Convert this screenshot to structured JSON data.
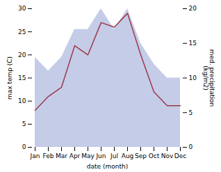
{
  "chart_data": {
    "type": "line",
    "categories": [
      "Jan",
      "Feb",
      "Mar",
      "Apr",
      "May",
      "Jun",
      "Jul",
      "Aug",
      "Sep",
      "Oct",
      "Nov",
      "Dec"
    ],
    "series": [
      {
        "type": "area",
        "color": "#c5cce8",
        "axis": "y2",
        "values": [
          13,
          11,
          13,
          17,
          17,
          20,
          17,
          20,
          15,
          12,
          10,
          10
        ]
      },
      {
        "type": "line",
        "color": "#9b3a4a",
        "values": [
          8,
          11,
          13,
          22,
          20,
          27,
          26,
          29,
          20,
          12,
          9,
          9
        ]
      }
    ],
    "xlabel": "date (month)",
    "ylabel": "max temp (C)",
    "y2label": "med. precipitation\n(kg/m2)",
    "ylim": [
      0,
      30
    ],
    "yticks": [
      0,
      5,
      10,
      15,
      20,
      25,
      30
    ],
    "y2lim": [
      0,
      20
    ],
    "y2ticks": [
      0,
      5,
      10,
      15,
      20
    ],
    "grid": false
  }
}
